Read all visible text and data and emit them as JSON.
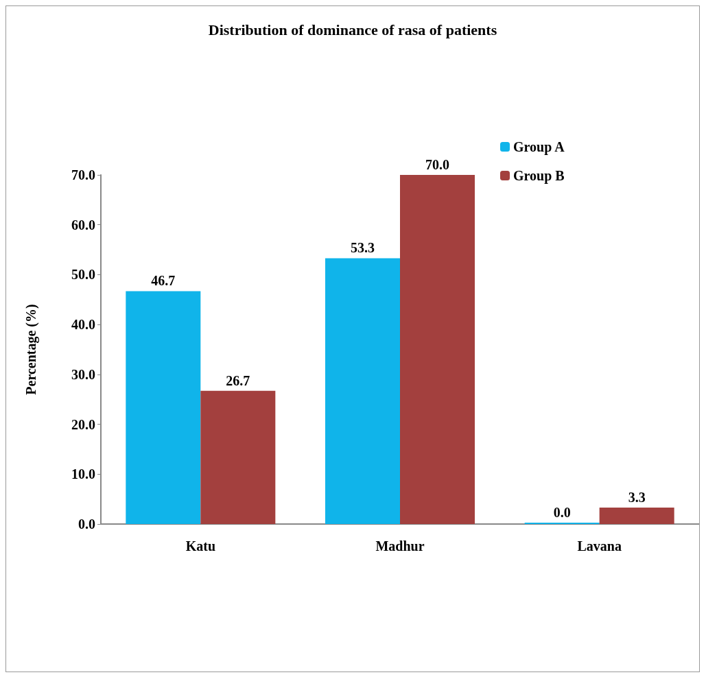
{
  "chart_data": {
    "type": "bar",
    "title": "Distribution of dominance of rasa of patients",
    "ylabel": "Percentage (%)",
    "categories": [
      "Katu",
      "Madhur",
      "Lavana"
    ],
    "series": [
      {
        "name": "Group A",
        "color": "#10b4ea",
        "values": [
          46.7,
          53.3,
          0.0
        ],
        "value_labels": [
          "46.7",
          "53.3",
          "0.0"
        ]
      },
      {
        "name": "Group B",
        "color": "#a3403e",
        "values": [
          26.7,
          70.0,
          3.3
        ],
        "value_labels": [
          "26.7",
          "70.0",
          "3.3"
        ]
      }
    ],
    "ylim": [
      0,
      70
    ],
    "yticks": [
      {
        "value": 0,
        "label": "0.0"
      },
      {
        "value": 10,
        "label": "10.0"
      },
      {
        "value": 20,
        "label": "20.0"
      },
      {
        "value": 30,
        "label": "30.0"
      },
      {
        "value": 40,
        "label": "40.0"
      },
      {
        "value": 50,
        "label": "50.0"
      },
      {
        "value": 60,
        "label": "60.0"
      },
      {
        "value": 70,
        "label": "70.0"
      }
    ],
    "legend": "top right",
    "grid": false
  }
}
